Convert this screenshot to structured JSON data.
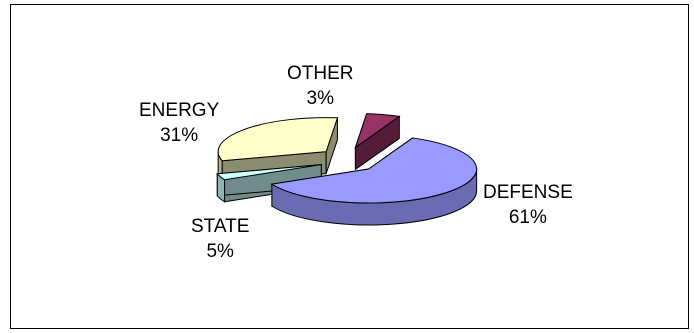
{
  "chart_data": {
    "type": "pie",
    "style": "3d-exploded",
    "title": "",
    "slices": [
      {
        "name": "DEFENSE",
        "value": 61,
        "label": "61%",
        "color": "#9999ff"
      },
      {
        "name": "OTHER",
        "value": 3,
        "label": "3%",
        "color": "#ccffff"
      },
      {
        "name": "ENERGY",
        "value": 31,
        "label": "31%",
        "color": "#ffffcc"
      },
      {
        "name": "STATE",
        "value": 5,
        "label": "5%",
        "color": "#993366"
      }
    ],
    "legend": "none"
  }
}
